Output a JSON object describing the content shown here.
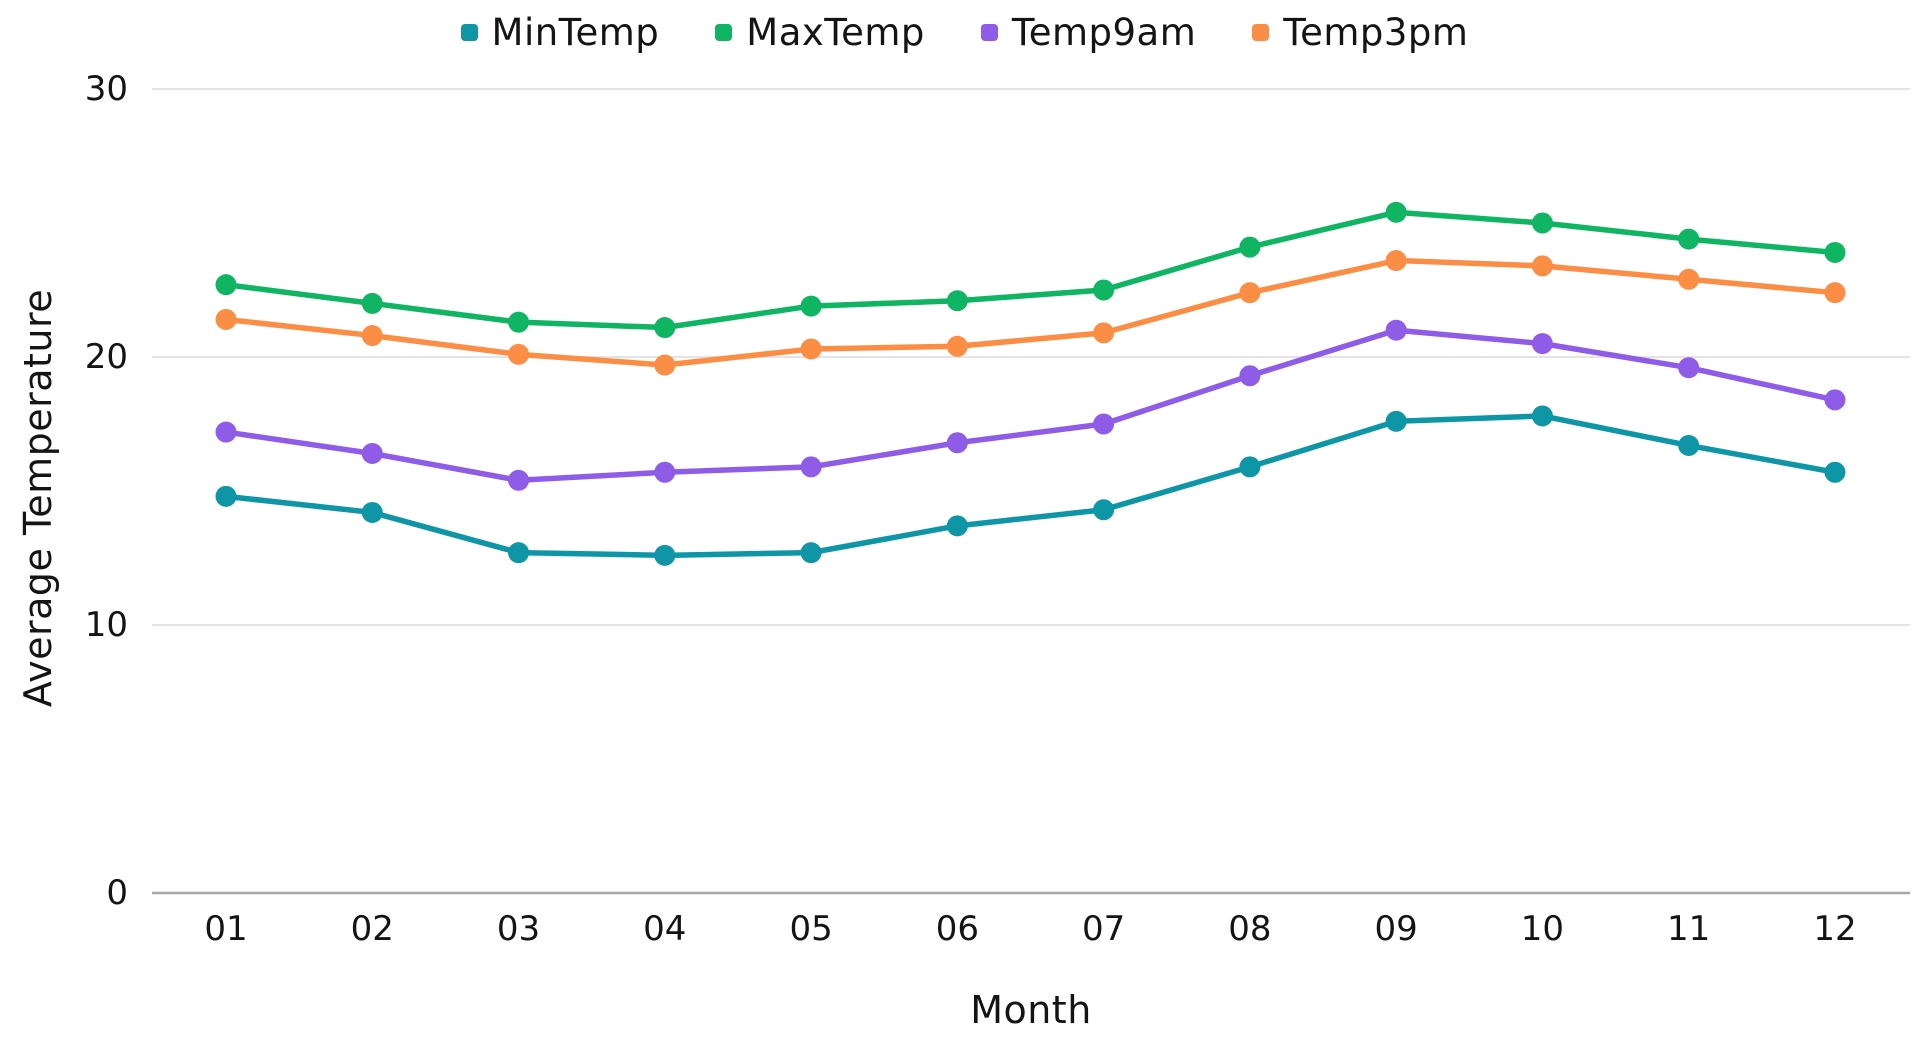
{
  "chart_data": {
    "type": "line",
    "title": "",
    "xlabel": "Month",
    "ylabel": "Average Temperature",
    "categories": [
      "01",
      "02",
      "03",
      "04",
      "05",
      "06",
      "07",
      "08",
      "09",
      "10",
      "11",
      "12"
    ],
    "yticks": [
      0,
      10,
      20,
      30
    ],
    "ylim": [
      0,
      30
    ],
    "grid": true,
    "legend_position": "top-center",
    "marker": "circle",
    "series": [
      {
        "name": "MinTemp",
        "color": "#0E96A6",
        "values": [
          14.8,
          14.2,
          12.7,
          12.6,
          12.7,
          13.7,
          14.3,
          15.9,
          17.6,
          17.8,
          16.7,
          15.7
        ]
      },
      {
        "name": "MaxTemp",
        "color": "#0FB563",
        "values": [
          22.7,
          22.0,
          21.3,
          21.1,
          21.9,
          22.1,
          22.5,
          24.1,
          25.4,
          25.0,
          24.4,
          23.9
        ]
      },
      {
        "name": "Temp9am",
        "color": "#8F5CE8",
        "values": [
          17.2,
          16.4,
          15.4,
          15.7,
          15.9,
          16.8,
          17.5,
          19.3,
          21.0,
          20.5,
          19.6,
          18.4
        ]
      },
      {
        "name": "Temp3pm",
        "color": "#FB8D45",
        "values": [
          21.4,
          20.8,
          20.1,
          19.7,
          20.3,
          20.4,
          20.9,
          22.4,
          23.6,
          23.4,
          22.9,
          22.4
        ]
      }
    ]
  },
  "colors": {
    "gridline": "#dcdcdc",
    "axis_line": "#a6a6a6",
    "text": "#141414"
  }
}
